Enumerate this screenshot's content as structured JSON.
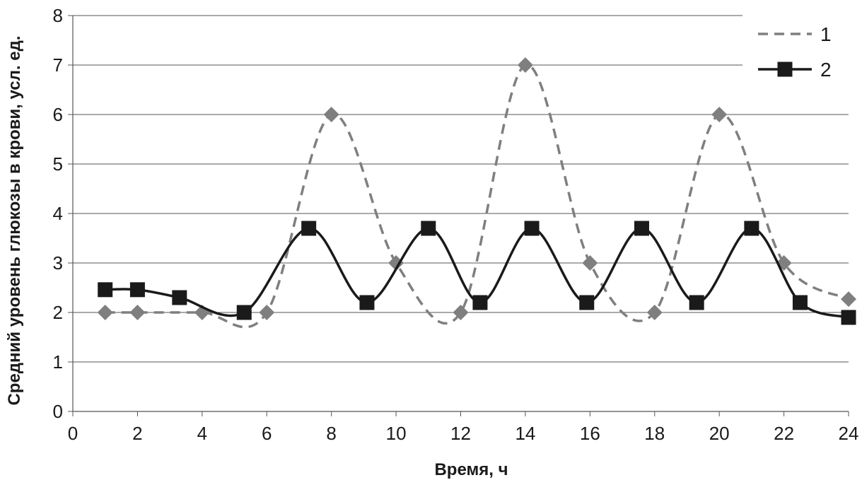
{
  "chart_data": {
    "type": "line",
    "title": "",
    "xlabel": "Время, ч",
    "ylabel": "Средний уровень глюкозы в крови, усл. ед.",
    "xlim": [
      0,
      24
    ],
    "ylim": [
      0,
      8
    ],
    "xticks": [
      "0",
      "2",
      "4",
      "6",
      "8",
      "10",
      "12",
      "14",
      "16",
      "18",
      "20",
      "22",
      "24"
    ],
    "yticks": [
      "0",
      "1",
      "2",
      "3",
      "4",
      "5",
      "6",
      "7",
      "8"
    ],
    "grid": "horizontal",
    "legend_position": "top-right",
    "series": [
      {
        "name": "1",
        "style": "dashed",
        "marker": "diamond",
        "color": "#7f7f7f",
        "x": [
          1,
          2,
          4,
          6,
          8,
          10,
          12,
          14,
          16,
          18,
          20,
          22,
          24
        ],
        "y": [
          2,
          2,
          2,
          2,
          6,
          3,
          2,
          7,
          3,
          2,
          6,
          3,
          2.27
        ]
      },
      {
        "name": "2",
        "style": "solid",
        "marker": "square",
        "color": "#1a1a1a",
        "x": [
          1,
          2,
          3.3,
          5.3,
          7.3,
          9.1,
          11,
          12.6,
          14.2,
          15.9,
          17.6,
          19.3,
          21,
          22.5,
          24
        ],
        "y": [
          2.46,
          2.46,
          2.3,
          2.0,
          3.7,
          2.2,
          3.7,
          2.2,
          3.7,
          2.2,
          3.7,
          2.2,
          3.7,
          2.2,
          1.9
        ]
      }
    ]
  }
}
